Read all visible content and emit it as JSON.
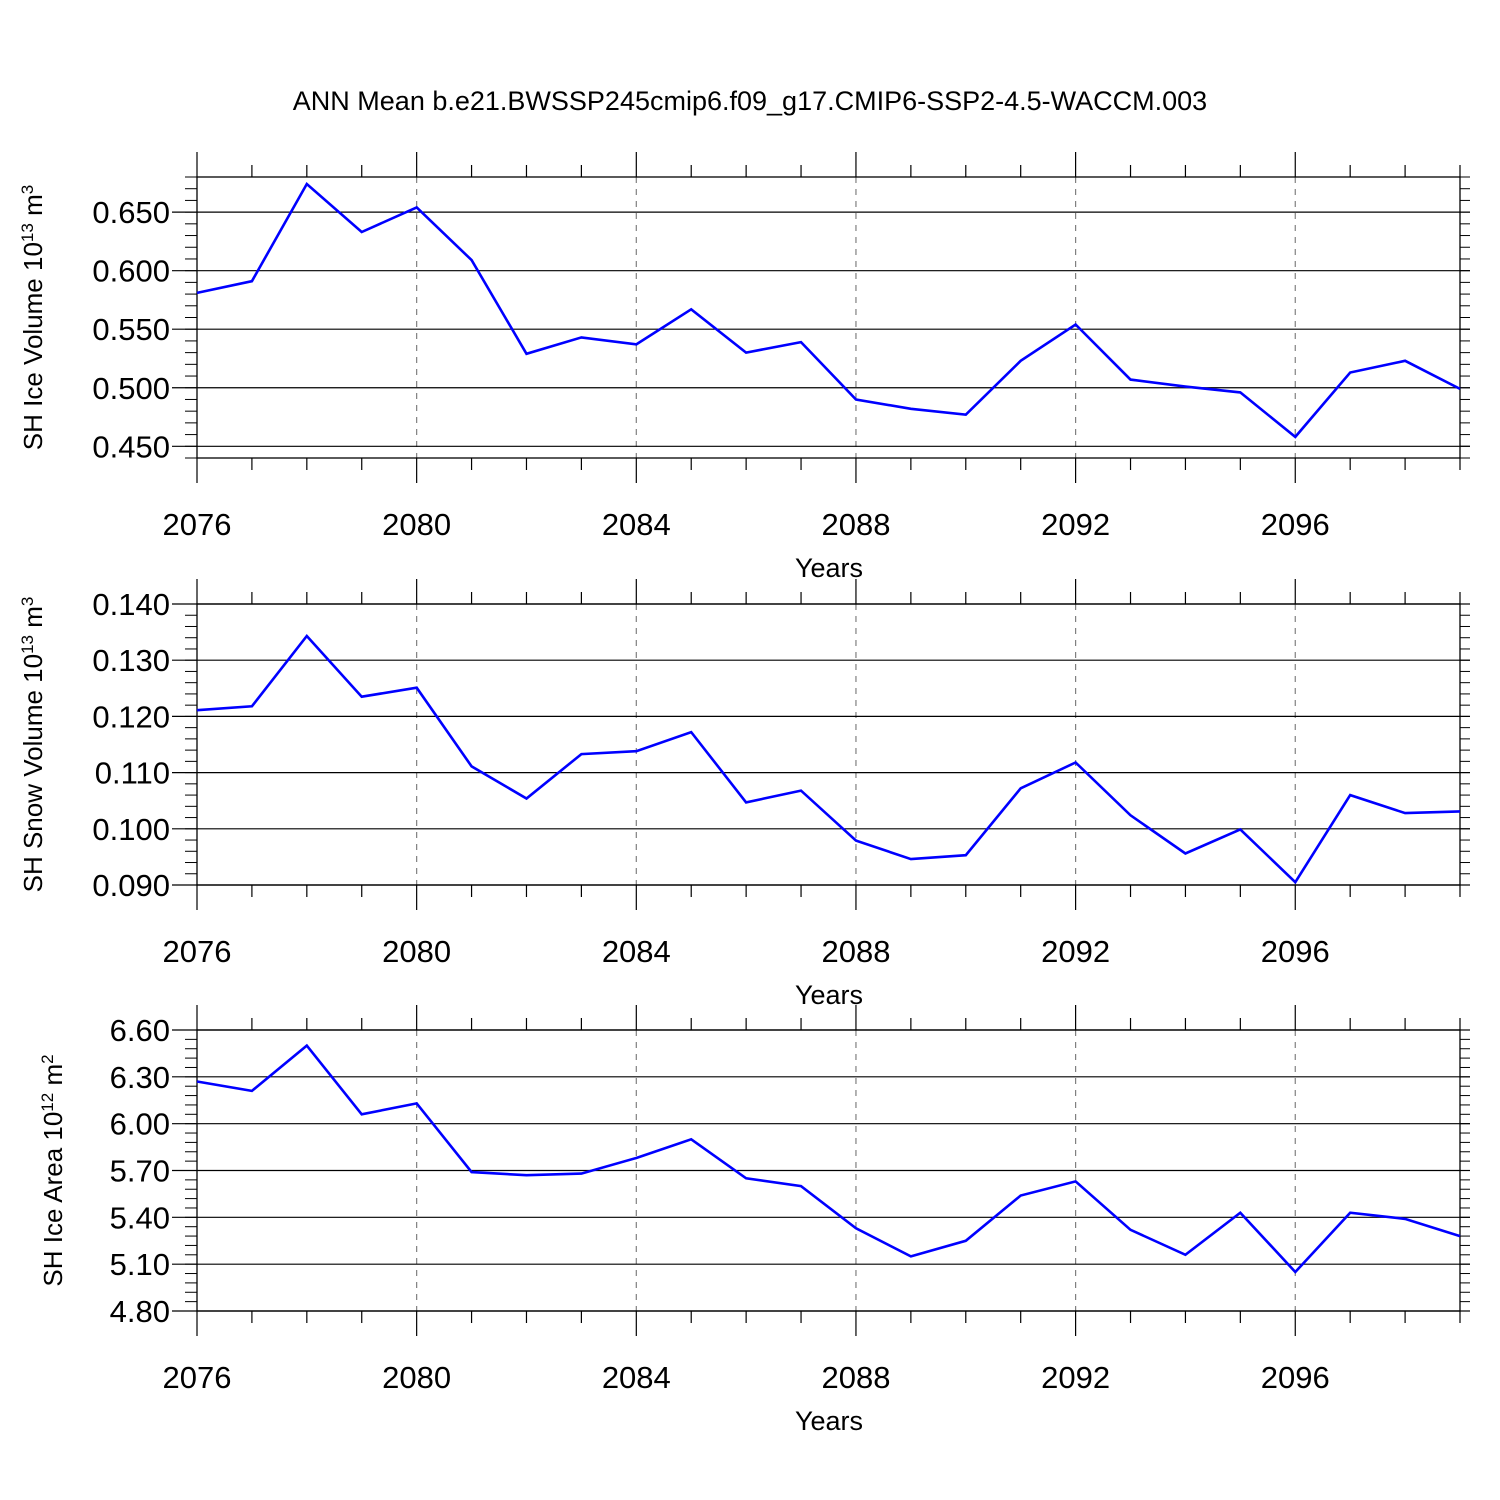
{
  "title": "ANN Mean b.e21.BWSSP245cmip6.f09_g17.CMIP6-SSP2-4.5-WACCM.003",
  "colors": {
    "line": "#0000ff",
    "axis": "#000000",
    "grid": "#808080"
  },
  "chart_data": [
    {
      "type": "line",
      "ylabel_text": "SH Ice Volume 10",
      "ylabel_exp": "13",
      "ylabel_unit": "m",
      "ylabel_unit_exp": "3",
      "xlabel": "Years",
      "xlim": [
        2076,
        2099
      ],
      "ylim": [
        0.44,
        0.68
      ],
      "yticks": [
        "0.450",
        "0.500",
        "0.550",
        "0.600",
        "0.650"
      ],
      "ytick_values": [
        0.45,
        0.5,
        0.55,
        0.6,
        0.65
      ],
      "xticks": [
        "2076",
        "2080",
        "2084",
        "2088",
        "2092",
        "2096"
      ],
      "xtick_values": [
        2076,
        2080,
        2084,
        2088,
        2092,
        2096
      ],
      "grid": "vertical dashed at major x ticks",
      "x": [
        2076,
        2077,
        2078,
        2079,
        2080,
        2081,
        2082,
        2083,
        2084,
        2085,
        2086,
        2087,
        2088,
        2089,
        2090,
        2091,
        2092,
        2093,
        2094,
        2095,
        2096,
        2097,
        2098,
        2099
      ],
      "values": [
        0.581,
        0.591,
        0.674,
        0.633,
        0.654,
        0.609,
        0.529,
        0.543,
        0.537,
        0.567,
        0.53,
        0.539,
        0.49,
        0.482,
        0.477,
        0.523,
        0.554,
        0.507,
        0.501,
        0.496,
        0.458,
        0.513,
        0.523,
        0.499
      ]
    },
    {
      "type": "line",
      "ylabel_text": "SH Snow Volume 10",
      "ylabel_exp": "13",
      "ylabel_unit": "m",
      "ylabel_unit_exp": "3",
      "xlabel": "Years",
      "xlim": [
        2076,
        2099
      ],
      "ylim": [
        0.09,
        0.14
      ],
      "yticks": [
        "0.090",
        "0.100",
        "0.110",
        "0.120",
        "0.130",
        "0.140"
      ],
      "ytick_values": [
        0.09,
        0.1,
        0.11,
        0.12,
        0.13,
        0.14
      ],
      "xticks": [
        "2076",
        "2080",
        "2084",
        "2088",
        "2092",
        "2096"
      ],
      "xtick_values": [
        2076,
        2080,
        2084,
        2088,
        2092,
        2096
      ],
      "grid": "vertical dashed at major x ticks",
      "x": [
        2076,
        2077,
        2078,
        2079,
        2080,
        2081,
        2082,
        2083,
        2084,
        2085,
        2086,
        2087,
        2088,
        2089,
        2090,
        2091,
        2092,
        2093,
        2094,
        2095,
        2096,
        2097,
        2098,
        2099
      ],
      "values": [
        0.1211,
        0.1218,
        0.1343,
        0.1235,
        0.1251,
        0.1111,
        0.1054,
        0.1133,
        0.1138,
        0.1172,
        0.1047,
        0.1068,
        0.0979,
        0.0946,
        0.0953,
        0.1072,
        0.1118,
        0.1024,
        0.0956,
        0.0999,
        0.0905,
        0.106,
        0.1028,
        0.1031
      ]
    },
    {
      "type": "line",
      "ylabel_text": "SH Ice Area 10",
      "ylabel_exp": "12",
      "ylabel_unit": "m",
      "ylabel_unit_exp": "2",
      "xlabel": "Years",
      "xlim": [
        2076,
        2099
      ],
      "ylim": [
        4.8,
        6.6
      ],
      "yticks": [
        "4.80",
        "5.10",
        "5.40",
        "5.70",
        "6.00",
        "6.30",
        "6.60"
      ],
      "ytick_values": [
        4.8,
        5.1,
        5.4,
        5.7,
        6.0,
        6.3,
        6.6
      ],
      "xticks": [
        "2076",
        "2080",
        "2084",
        "2088",
        "2092",
        "2096"
      ],
      "xtick_values": [
        2076,
        2080,
        2084,
        2088,
        2092,
        2096
      ],
      "grid": "vertical dashed at major x ticks",
      "x": [
        2076,
        2077,
        2078,
        2079,
        2080,
        2081,
        2082,
        2083,
        2084,
        2085,
        2086,
        2087,
        2088,
        2089,
        2090,
        2091,
        2092,
        2093,
        2094,
        2095,
        2096,
        2097,
        2098,
        2099
      ],
      "values": [
        6.27,
        6.21,
        6.5,
        6.06,
        6.13,
        5.69,
        5.67,
        5.68,
        5.78,
        5.9,
        5.65,
        5.6,
        5.33,
        5.15,
        5.25,
        5.54,
        5.63,
        5.32,
        5.16,
        5.43,
        5.05,
        5.43,
        5.39,
        5.28
      ]
    }
  ]
}
